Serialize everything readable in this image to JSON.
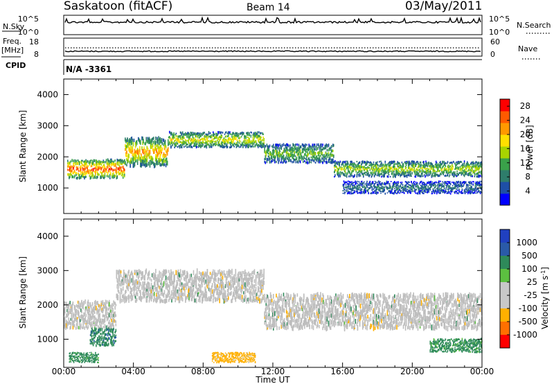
{
  "header": {
    "station": "Saskatoon (fitACF)",
    "beam": "Beam 14",
    "date": "03/May/2011"
  },
  "top_panels": {
    "nsky_label": "N.Sky",
    "nsky_ticks": [
      "10^5",
      "10^0"
    ],
    "nsearch_label": "N.Search",
    "nsearch_ticks": [
      "10^5",
      "10^0"
    ],
    "freq_label": "Freq.",
    "freq_unit": "[MHz]",
    "freq_ticks": [
      "18",
      "8"
    ],
    "nave_label": "Nave",
    "nave_ticks": [
      "60",
      "0"
    ],
    "cpid_label": "CPID",
    "cpid_value": "N/A -3361"
  },
  "colors": {
    "power_scale": [
      "#0000ff",
      "#1e4fa6",
      "#2e7d6b",
      "#3aa14a",
      "#a8d400",
      "#ffe000",
      "#ff9900",
      "#ff5a00",
      "#ff0000"
    ],
    "velocity_scale": [
      "#2040c0",
      "#2a5aa8",
      "#2e8a5a",
      "#5cc040",
      "#c8c8c8",
      "#c8c8c8",
      "#ffb000",
      "#ff7000",
      "#ff0000"
    ],
    "ground_scatter": "#bebebe"
  },
  "chart_data": [
    {
      "type": "heatmap",
      "panel": "power",
      "ylabel": "Slant Range [km]",
      "xlabel": "Time UT",
      "x_ticks": [
        "00:00",
        "04:00",
        "08:00",
        "12:00",
        "16:00",
        "20:00",
        "00:00"
      ],
      "y_ticks": [
        "1000",
        "2000",
        "3000",
        "4000"
      ],
      "ylim": [
        180,
        4500
      ],
      "xlim_hours": [
        0,
        24
      ],
      "colorbar": {
        "label": "Power [dB]",
        "ticks": [
          "4",
          "8",
          "12",
          "16",
          "20",
          "24",
          "28"
        ],
        "range": [
          0,
          30
        ]
      },
      "bands": [
        {
          "t": [
            0.2,
            3.5
          ],
          "r": [
            1300,
            1900
          ],
          "peak_db": 26
        },
        {
          "t": [
            3.5,
            6.0
          ],
          "r": [
            1700,
            2600
          ],
          "peak_db": 22
        },
        {
          "t": [
            6.0,
            11.5
          ],
          "r": [
            2300,
            2800
          ],
          "peak_db": 18
        },
        {
          "t": [
            11.5,
            15.5
          ],
          "r": [
            1800,
            2400
          ],
          "peak_db": 14
        },
        {
          "t": [
            15.5,
            24.0
          ],
          "r": [
            1350,
            1850
          ],
          "peak_db": 16
        },
        {
          "t": [
            16.0,
            24.0
          ],
          "r": [
            800,
            1200
          ],
          "peak_db": 8
        }
      ]
    },
    {
      "type": "heatmap",
      "panel": "velocity",
      "ylabel": "Slant Range [km]",
      "xlabel": "Time UT",
      "x_ticks": [
        "00:00",
        "04:00",
        "08:00",
        "12:00",
        "16:00",
        "20:00",
        "00:00"
      ],
      "y_ticks": [
        "1000",
        "2000",
        "3000",
        "4000"
      ],
      "ylim": [
        180,
        4500
      ],
      "xlim_hours": [
        0,
        24
      ],
      "colorbar": {
        "label": "Velocity [m s^-1]",
        "ticks": [
          "1000",
          "500",
          "100",
          "25",
          "-25",
          "-100",
          "-500",
          "-1000"
        ],
        "range": [
          -1000,
          1000
        ]
      },
      "bands": [
        {
          "t": [
            0.0,
            3.0
          ],
          "r": [
            1300,
            2100
          ],
          "v": 0
        },
        {
          "t": [
            1.5,
            3.0
          ],
          "r": [
            800,
            1300
          ],
          "v": 400
        },
        {
          "t": [
            3.0,
            11.5
          ],
          "r": [
            2100,
            3000
          ],
          "v": 0
        },
        {
          "t": [
            11.5,
            24.0
          ],
          "r": [
            1300,
            2300
          ],
          "v": 0
        },
        {
          "t": [
            0.3,
            2.0
          ],
          "r": [
            300,
            600
          ],
          "v": 150
        },
        {
          "t": [
            8.5,
            11.0
          ],
          "r": [
            300,
            600
          ],
          "v": -150
        },
        {
          "t": [
            21.0,
            24.0
          ],
          "r": [
            600,
            1000
          ],
          "v": 150
        }
      ]
    }
  ]
}
